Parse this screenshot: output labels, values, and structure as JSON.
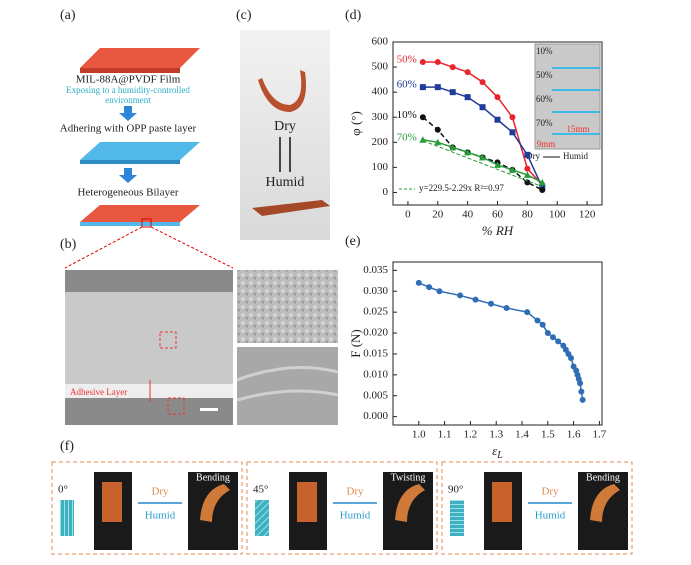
{
  "figure": {
    "a": {
      "label": "(a)",
      "film": "MIL-88A@PVDF Film",
      "step1_line1": "Exposing to a humidity-controlled",
      "step1_line2": "environment",
      "step2": "Adhering with OPP paste layer",
      "step3": "Heterogeneous Bilayer"
    },
    "b": {
      "label": "(b)",
      "layer": "Adhesive Layer"
    },
    "c": {
      "label": "(c)",
      "dry": "Dry",
      "humid": "Humid"
    },
    "f": {
      "label": "(f)",
      "panels": [
        {
          "angle": "0°",
          "dry": "Dry",
          "humid": "Humid",
          "mode": "Bending"
        },
        {
          "angle": "45°",
          "dry": "Dry",
          "humid": "Humid",
          "mode": "Twisting"
        },
        {
          "angle": "90°",
          "dry": "Dry",
          "humid": "Humid",
          "mode": "Bending"
        }
      ]
    }
  },
  "chart_data": [
    {
      "type": "line",
      "panel_label": "(d)",
      "xlabel": "% RH",
      "ylabel": "φ (°)",
      "x": [
        10,
        20,
        30,
        40,
        50,
        60,
        70,
        80,
        90
      ],
      "series": [
        {
          "name": "50%",
          "color": "#e8252c",
          "marker": "circle",
          "values": [
            520,
            520,
            500,
            480,
            440,
            380,
            300,
            95,
            30
          ]
        },
        {
          "name": "60%",
          "color": "#1f3c9a",
          "marker": "square",
          "values": [
            420,
            420,
            400,
            380,
            340,
            290,
            240,
            150,
            20
          ]
        },
        {
          "name": "10%",
          "color": "#111111",
          "marker": "circle",
          "dashed": true,
          "values": [
            300,
            250,
            180,
            160,
            140,
            120,
            90,
            40,
            10
          ]
        },
        {
          "name": "70%",
          "color": "#2a9a3a",
          "marker": "triangle",
          "values": [
            210,
            200,
            180,
            160,
            140,
            110,
            90,
            70,
            40
          ]
        }
      ],
      "fit": {
        "label": "y=229.5-2.29x  R²=0.97",
        "intercept": 229.5,
        "slope": -2.29,
        "color": "#2a9a3a"
      },
      "inset_labels": [
        "10%",
        "50%",
        "60%",
        "70%"
      ],
      "inset_scale": "15mm",
      "inset_scale2": "9mm",
      "inset_dry": "Dry",
      "inset_humid": "Humid",
      "xlim": [
        -10,
        130
      ],
      "ylim": [
        -50,
        600
      ],
      "xticks": [
        0,
        20,
        40,
        60,
        80,
        100,
        120
      ],
      "yticks": [
        0,
        100,
        200,
        300,
        400,
        500,
        600
      ]
    },
    {
      "type": "line",
      "panel_label": "(e)",
      "xlabel": "ε",
      "xlabel_sub": "L",
      "ylabel": "F (N)",
      "color": "#2f6db5",
      "x": [
        1.0,
        1.04,
        1.08,
        1.16,
        1.22,
        1.28,
        1.34,
        1.42,
        1.46,
        1.48,
        1.5,
        1.52,
        1.54,
        1.56,
        1.57,
        1.58,
        1.59,
        1.6,
        1.61,
        1.615,
        1.62,
        1.625,
        1.63,
        1.635
      ],
      "values": [
        0.032,
        0.031,
        0.03,
        0.029,
        0.028,
        0.027,
        0.026,
        0.025,
        0.023,
        0.022,
        0.02,
        0.019,
        0.018,
        0.017,
        0.016,
        0.015,
        0.014,
        0.012,
        0.011,
        0.01,
        0.009,
        0.008,
        0.006,
        0.004
      ],
      "xlim": [
        0.9,
        1.71
      ],
      "ylim": [
        -0.002,
        0.037
      ],
      "xticks": [
        {
          "value": 1.0,
          "label": "1.0"
        },
        1.1,
        1.2,
        1.3,
        1.4,
        1.5,
        1.6,
        1.7
      ],
      "yticks": [
        {
          "value": 0,
          "label": "0.000"
        },
        0.005,
        {
          "value": 0.01,
          "label": "0.010"
        },
        0.015,
        {
          "value": 0.02,
          "label": "0.020"
        },
        0.025,
        {
          "value": 0.03,
          "label": "0.030"
        },
        0.035
      ]
    }
  ]
}
